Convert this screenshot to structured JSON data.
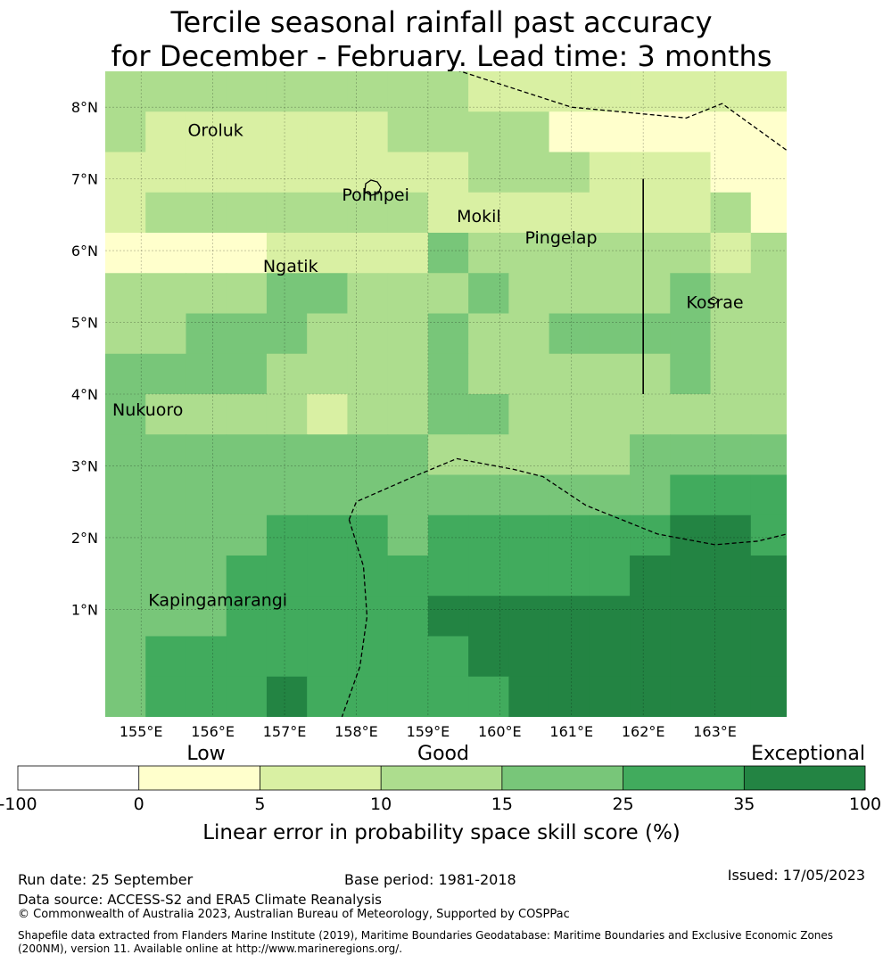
{
  "title": {
    "line1": "Tercile seasonal rainfall past accuracy",
    "line2": "for December - February. Lead time: 3 months"
  },
  "map": {
    "lon_range": [
      154.5,
      164.0
    ],
    "lat_range": [
      -0.5,
      8.5
    ],
    "cell_deg": 0.5625,
    "lon_ticks": [
      155,
      156,
      157,
      158,
      159,
      160,
      161,
      162,
      163
    ],
    "lon_tick_labels": [
      "155°E",
      "156°E",
      "157°E",
      "158°E",
      "159°E",
      "160°E",
      "161°E",
      "162°E",
      "163°E"
    ],
    "lat_ticks": [
      1,
      2,
      3,
      4,
      5,
      6,
      7,
      8
    ],
    "lat_tick_labels": [
      "1°N",
      "2°N",
      "3°N",
      "4°N",
      "5°N",
      "6°N",
      "7°N",
      "8°N"
    ],
    "grid": [
      [
        3,
        3,
        3,
        3,
        3,
        3,
        3,
        3,
        3,
        2,
        2,
        2,
        2,
        2,
        2,
        2,
        2,
        2
      ],
      [
        3,
        2,
        2,
        2,
        2,
        2,
        2,
        3,
        3,
        3,
        3,
        1,
        1,
        1,
        1,
        1,
        1,
        1
      ],
      [
        2,
        2,
        2,
        2,
        2,
        2,
        2,
        2,
        2,
        3,
        3,
        3,
        2,
        2,
        2,
        1,
        1,
        1
      ],
      [
        2,
        3,
        3,
        3,
        3,
        3,
        3,
        3,
        2,
        2,
        2,
        2,
        2,
        2,
        2,
        3,
        1,
        1
      ],
      [
        1,
        1,
        1,
        1,
        2,
        2,
        2,
        2,
        4,
        3,
        3,
        3,
        3,
        3,
        3,
        2,
        3,
        2
      ],
      [
        3,
        3,
        3,
        3,
        4,
        4,
        3,
        3,
        3,
        4,
        3,
        3,
        3,
        3,
        4,
        3,
        3,
        3
      ],
      [
        3,
        3,
        4,
        4,
        4,
        3,
        3,
        3,
        4,
        3,
        3,
        4,
        4,
        4,
        4,
        3,
        3,
        4
      ],
      [
        4,
        4,
        4,
        4,
        3,
        3,
        3,
        3,
        4,
        3,
        3,
        3,
        3,
        3,
        4,
        3,
        3,
        3
      ],
      [
        4,
        3,
        3,
        3,
        3,
        2,
        3,
        3,
        4,
        4,
        3,
        3,
        3,
        3,
        3,
        3,
        3,
        4
      ],
      [
        4,
        4,
        4,
        4,
        4,
        4,
        4,
        4,
        3,
        3,
        3,
        3,
        3,
        4,
        4,
        4,
        4,
        4
      ],
      [
        4,
        4,
        4,
        4,
        4,
        4,
        4,
        4,
        4,
        4,
        4,
        4,
        4,
        4,
        5,
        5,
        5,
        5
      ],
      [
        4,
        4,
        4,
        4,
        5,
        5,
        5,
        4,
        5,
        5,
        5,
        5,
        5,
        5,
        6,
        6,
        5,
        6
      ],
      [
        4,
        4,
        4,
        5,
        5,
        5,
        5,
        5,
        5,
        5,
        5,
        5,
        5,
        6,
        6,
        6,
        6,
        6
      ],
      [
        4,
        4,
        4,
        5,
        5,
        5,
        5,
        5,
        6,
        6,
        6,
        6,
        6,
        6,
        6,
        6,
        6,
        6
      ],
      [
        4,
        5,
        5,
        5,
        5,
        5,
        5,
        5,
        5,
        6,
        6,
        6,
        6,
        6,
        6,
        6,
        6,
        6
      ],
      [
        4,
        5,
        5,
        5,
        6,
        5,
        5,
        5,
        5,
        5,
        6,
        6,
        6,
        6,
        6,
        6,
        6,
        6
      ],
      [
        5,
        5,
        5,
        5,
        5,
        5,
        5,
        5,
        5,
        6,
        6,
        6,
        6,
        6,
        6,
        6,
        6,
        6
      ]
    ],
    "places": [
      {
        "name": "Oroluk",
        "lon": 155.65,
        "lat": 7.6
      },
      {
        "name": "Pohnpei",
        "lon": 157.8,
        "lat": 6.7
      },
      {
        "name": "Mokil",
        "lon": 159.4,
        "lat": 6.4
      },
      {
        "name": "Pingelap",
        "lon": 160.35,
        "lat": 6.1
      },
      {
        "name": "Ngatik",
        "lon": 156.7,
        "lat": 5.7
      },
      {
        "name": "Kosrae",
        "lon": 162.6,
        "lat": 5.2
      },
      {
        "name": "Nukuoro",
        "lon": 154.6,
        "lat": 3.7
      },
      {
        "name": "Kapingamarangi",
        "lon": 155.1,
        "lat": 1.05
      }
    ],
    "eez_lines": [
      [
        [
          159.3,
          8.55
        ],
        [
          161.0,
          8.0
        ],
        [
          162.6,
          7.85
        ],
        [
          163.1,
          8.05
        ],
        [
          164.0,
          7.4
        ]
      ],
      [
        [
          157.9,
          2.25
        ],
        [
          158.0,
          2.5
        ],
        [
          158.8,
          2.85
        ],
        [
          159.4,
          3.1
        ],
        [
          160.2,
          2.95
        ],
        [
          160.6,
          2.85
        ],
        [
          161.2,
          2.45
        ],
        [
          162.2,
          2.05
        ],
        [
          163.0,
          1.9
        ],
        [
          163.6,
          1.95
        ],
        [
          164.0,
          2.05
        ]
      ],
      [
        [
          157.9,
          2.25
        ],
        [
          158.1,
          1.6
        ],
        [
          158.15,
          0.9
        ],
        [
          158.05,
          0.2
        ],
        [
          157.8,
          -0.5
        ]
      ]
    ],
    "boundary_line": [
      [
        162.0,
        7.0
      ],
      [
        162.0,
        4.0
      ]
    ]
  },
  "colorbar": {
    "categories": [
      "Low",
      "Good",
      "Exceptional"
    ],
    "tick_labels": [
      "-100",
      "0",
      "5",
      "10",
      "15",
      "25",
      "35",
      "100"
    ],
    "colors": [
      "#ffffff",
      "#ffffcc",
      "#d9f0a3",
      "#addd8e",
      "#78c679",
      "#41ab5d",
      "#238443"
    ],
    "label": "Linear error in probability space skill score (%)"
  },
  "footer": {
    "run_date": "Run date: 25 September",
    "base_period": "Base period: 1981-2018",
    "issued": "Issued: 17/05/2023",
    "data_source": "Data source: ACCESS-S2 and ERA5 Climate Reanalysis",
    "copyright": "© Commonwealth of Australia 2023, Australian Bureau of Meteorology, Supported by COSPPac",
    "shapefile": "Shapefile data extracted from Flanders Marine Institute (2019), Maritime Boundaries Geodatabase: Maritime Boundaries and Exclusive Economic Zones (200NM), version 11. Available online at http://www.marineregions.org/."
  }
}
